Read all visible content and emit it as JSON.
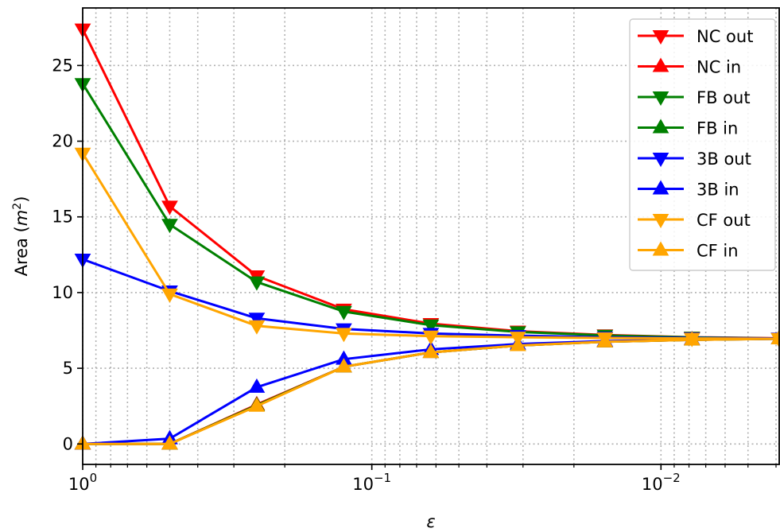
{
  "chart_data": {
    "type": "line",
    "title": "",
    "xlabel": "ε",
    "ylabel": "Area",
    "ylabel_unit": "m",
    "ylabel_unit_exp": "2",
    "x_scale": "log",
    "x_direction": "reversed",
    "xlim": [
      1.0,
      0.0039
    ],
    "ylim": [
      -1.35,
      28.8
    ],
    "y_ticks": [
      0,
      5,
      10,
      15,
      20,
      25
    ],
    "y_tick_labels": [
      "0",
      "5",
      "10",
      "15",
      "20",
      "25"
    ],
    "x_ticks": [
      1,
      0.1,
      0.01
    ],
    "x_tick_labels": [
      {
        "base": "10",
        "exp": "0"
      },
      {
        "base": "10",
        "exp": "−1"
      },
      {
        "base": "10",
        "exp": "−2"
      }
    ],
    "grid": true,
    "legend_position": "top-right",
    "x": [
      1,
      0.5,
      0.25,
      0.125,
      0.0625,
      0.03125,
      0.015625,
      0.0078125,
      0.00390625
    ],
    "series": [
      {
        "name": "NC out",
        "color": "#ff0000",
        "marker": "triangle-down",
        "values": [
          27.4,
          15.7,
          11.1,
          8.9,
          7.95,
          7.45,
          7.2,
          7.05,
          6.98
        ]
      },
      {
        "name": "NC in",
        "color": "#ff0000",
        "marker": "triangle-up",
        "values": [
          0.0,
          0.0,
          2.6,
          5.1,
          6.05,
          6.5,
          6.75,
          6.88,
          6.95
        ]
      },
      {
        "name": "FB out",
        "color": "#008000",
        "marker": "triangle-down",
        "values": [
          23.8,
          14.5,
          10.7,
          8.75,
          7.85,
          7.4,
          7.17,
          7.04,
          6.97
        ]
      },
      {
        "name": "FB in",
        "color": "#008000",
        "marker": "triangle-up",
        "values": [
          0.0,
          0.0,
          2.55,
          5.1,
          6.05,
          6.5,
          6.75,
          6.88,
          6.95
        ]
      },
      {
        "name": "3B out",
        "color": "#0000ff",
        "marker": "triangle-down",
        "values": [
          12.2,
          10.1,
          8.3,
          7.6,
          7.3,
          7.15,
          7.05,
          7.0,
          6.97
        ]
      },
      {
        "name": "3B in",
        "color": "#0000ff",
        "marker": "triangle-up",
        "values": [
          0.0,
          0.35,
          3.75,
          5.6,
          6.25,
          6.6,
          6.8,
          6.9,
          6.95
        ]
      },
      {
        "name": "CF out",
        "color": "#ffa500",
        "marker": "triangle-down",
        "values": [
          19.2,
          9.9,
          7.8,
          7.3,
          7.12,
          7.05,
          7.0,
          6.97,
          6.95
        ]
      },
      {
        "name": "CF in",
        "color": "#ffa500",
        "marker": "triangle-up",
        "values": [
          0.0,
          0.0,
          2.5,
          5.1,
          6.05,
          6.5,
          6.75,
          6.88,
          6.95
        ]
      }
    ]
  }
}
